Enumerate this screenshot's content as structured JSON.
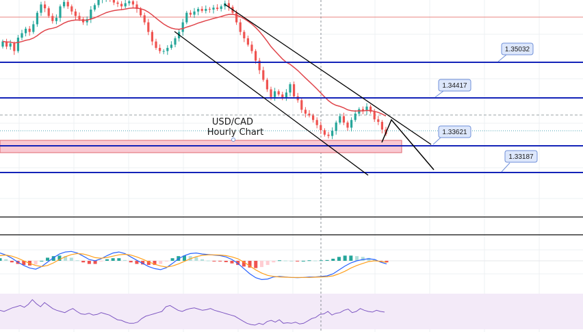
{
  "chart_data": {
    "type": "candlestick",
    "title": "USD/CAD",
    "subtitle": "Hourly Chart",
    "price_labels": [
      "1.35032",
      "1.34417",
      "1.33621",
      "1.33187"
    ],
    "levels": [
      {
        "label": "1.35032",
        "value": 1.35032
      },
      {
        "label": "1.34417",
        "value": 1.34417
      },
      {
        "label": "1.33621",
        "value": 1.33621
      },
      {
        "label": "1.33187",
        "value": 1.33187
      }
    ],
    "support_zone": [
      1.3355,
      1.3367
    ],
    "current_price": 1.3378,
    "ylim": [
      1.324,
      1.358
    ],
    "grid": true,
    "close": [
      1.3515,
      1.3507,
      1.3512,
      1.35,
      1.3521,
      1.3528,
      1.3535,
      1.353,
      1.3542,
      1.356,
      1.3573,
      1.3567,
      1.3555,
      1.3547,
      1.3552,
      1.357,
      1.3577,
      1.357,
      1.3562,
      1.3555,
      1.355,
      1.3545,
      1.355,
      1.3565,
      1.3572,
      1.358,
      1.3583,
      1.3585,
      1.358,
      1.3576,
      1.3574,
      1.357,
      1.3575,
      1.3578,
      1.3573,
      1.3566,
      1.3556,
      1.3545,
      1.353,
      1.3515,
      1.3505,
      1.35,
      1.35,
      1.3505,
      1.351,
      1.352,
      1.353,
      1.3545,
      1.356,
      1.3557,
      1.3562,
      1.3566,
      1.3563,
      1.3566,
      1.3565,
      1.3568,
      1.3566,
      1.357,
      1.3575,
      1.3569,
      1.356,
      1.3545,
      1.353,
      1.352,
      1.351,
      1.35,
      1.3485,
      1.347,
      1.3455,
      1.344,
      1.3428,
      1.3437,
      1.3432,
      1.3427,
      1.3435,
      1.3448,
      1.3429,
      1.3423,
      1.3408,
      1.3402,
      1.3399,
      1.3392,
      1.3384,
      1.3376,
      1.3369,
      1.3367,
      1.3375,
      1.3388,
      1.3398,
      1.3388,
      1.338,
      1.3392,
      1.3402,
      1.3409,
      1.3406,
      1.3413,
      1.3405,
      1.3393,
      1.3389,
      1.3377,
      1.337
    ]
  },
  "price_axis_note": "",
  "indicators": {
    "macd": {
      "macd_line": [
        0.3,
        0.22,
        0.1,
        -0.05,
        -0.18,
        -0.28,
        -0.32,
        -0.22,
        -0.05,
        0.12,
        0.26,
        0.34,
        0.36,
        0.3,
        0.18,
        0.05,
        0.0,
        0.08,
        0.2,
        0.3,
        0.34,
        0.28,
        0.15,
        0.02,
        -0.1,
        -0.22,
        -0.3,
        -0.34,
        -0.26,
        -0.1,
        0.08,
        0.2,
        0.28,
        0.3,
        0.26,
        0.24,
        0.22,
        0.2,
        0.15,
        0.05,
        -0.1,
        -0.3,
        -0.5,
        -0.65,
        -0.72,
        -0.7,
        -0.62,
        -0.6,
        -0.62,
        -0.64,
        -0.65,
        -0.64,
        -0.62,
        -0.62,
        -0.6,
        -0.58,
        -0.5,
        -0.35,
        -0.2,
        -0.08,
        0.0,
        0.05,
        0.08,
        0.05,
        -0.05,
        -0.12
      ],
      "signal_line": [
        0.2,
        0.22,
        0.18,
        0.1,
        0.0,
        -0.1,
        -0.18,
        -0.22,
        -0.18,
        -0.08,
        0.05,
        0.16,
        0.24,
        0.28,
        0.26,
        0.2,
        0.12,
        0.1,
        0.13,
        0.18,
        0.23,
        0.25,
        0.22,
        0.15,
        0.06,
        -0.04,
        -0.13,
        -0.2,
        -0.24,
        -0.2,
        -0.12,
        -0.02,
        0.08,
        0.16,
        0.21,
        0.23,
        0.23,
        0.22,
        0.2,
        0.15,
        0.08,
        -0.05,
        -0.2,
        -0.35,
        -0.47,
        -0.56,
        -0.6,
        -0.62,
        -0.63,
        -0.64,
        -0.64,
        -0.64,
        -0.64,
        -0.63,
        -0.62,
        -0.61,
        -0.58,
        -0.5,
        -0.4,
        -0.28,
        -0.18,
        -0.1,
        -0.03,
        0.0,
        -0.02,
        -0.06
      ],
      "histogram": [
        0.1,
        0.06,
        -0.06,
        -0.12,
        -0.16,
        -0.18,
        -0.14,
        0.0,
        0.12,
        0.18,
        0.2,
        0.18,
        0.12,
        0.02,
        -0.06,
        -0.12,
        -0.12,
        -0.02,
        0.06,
        0.1,
        0.1,
        0.03,
        -0.06,
        -0.12,
        -0.14,
        -0.16,
        -0.16,
        -0.12,
        -0.02,
        0.1,
        0.18,
        0.2,
        0.18,
        0.14,
        0.06,
        0.01,
        -0.01,
        -0.02,
        -0.05,
        -0.1,
        -0.16,
        -0.22,
        -0.26,
        -0.28,
        -0.24,
        -0.16,
        -0.06,
        0.02,
        0.01,
        0.0,
        -0.01,
        0.0,
        0.02,
        0.01,
        0.02,
        0.03,
        0.08,
        0.15,
        0.2,
        0.2,
        0.18,
        0.15,
        0.11,
        0.05,
        -0.03,
        -0.06
      ]
    },
    "rsi": {
      "values": [
        52,
        50,
        53,
        56,
        58,
        60,
        57,
        62,
        70,
        63,
        58,
        65,
        60,
        55,
        52,
        50,
        48,
        52,
        55,
        50,
        46,
        45,
        47,
        44,
        45,
        48,
        46,
        44,
        40,
        36,
        35,
        32,
        30,
        30,
        32,
        38,
        42,
        44,
        46,
        48,
        50,
        58,
        60,
        56,
        52,
        50,
        53,
        55,
        56,
        54,
        52,
        53,
        55,
        52,
        50,
        48,
        46,
        44,
        42,
        38,
        34,
        30,
        28,
        27,
        30,
        28,
        33,
        35,
        32,
        36,
        30,
        31,
        30,
        32,
        29,
        30,
        34,
        38,
        40,
        45,
        46,
        50,
        44,
        47,
        48,
        52,
        54,
        48,
        50,
        55,
        52,
        50,
        49,
        52,
        50,
        49
      ]
    }
  },
  "colors": {
    "bull": "#26a69a",
    "bear": "#ef5350",
    "level_line": "#1323b8",
    "trend_line": "#000000",
    "ema": "#e0444a",
    "support_fill": "#f9c9d2",
    "support_stroke": "#e0666f",
    "red_hline": "#e8857f",
    "macd_line": "#2962ff",
    "signal_line": "#ff9f1a",
    "rsi_line": "#7e57c2",
    "rsi_band": "#f3eaf8",
    "label_bg": "#dde7fb",
    "label_border": "#6f8fd8"
  }
}
